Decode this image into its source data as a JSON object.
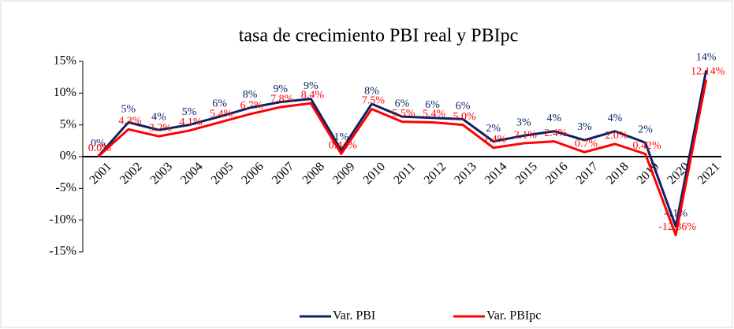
{
  "chart_data": {
    "type": "line",
    "title": "tasa de crecimiento PBI real y PBIpc",
    "categories": [
      "2001",
      "2002",
      "2003",
      "2004",
      "2005",
      "2006",
      "2007",
      "2008",
      "2009",
      "2010",
      "2011",
      "2012",
      "2013",
      "2014",
      "2015",
      "2016",
      "2017",
      "2018",
      "2019",
      "2020",
      "2021"
    ],
    "series": [
      {
        "name": "Var. PBI",
        "color": "#0b2265",
        "values": [
          0,
          5.4,
          4.2,
          5.0,
          6.3,
          7.7,
          8.6,
          9.1,
          1.0,
          8.3,
          6.3,
          6.1,
          5.9,
          2.4,
          3.3,
          4.0,
          2.6,
          4.0,
          2.2,
          -11.0,
          13.6
        ],
        "value_labels": [
          "0%",
          "5%",
          "4%",
          "5%",
          "6%",
          "8%",
          "9%",
          "9%",
          "1%",
          "8%",
          "6%",
          "6%",
          "6%",
          "2%",
          "3%",
          "4%",
          "3%",
          "4%",
          "2%",
          "-11%",
          "14%"
        ]
      },
      {
        "name": "Var. PBIpc",
        "color": "#ff0000",
        "values": [
          0.0,
          4.3,
          3.2,
          4.1,
          5.4,
          6.7,
          7.8,
          8.4,
          0.44,
          7.5,
          5.5,
          5.4,
          5.0,
          1.4,
          2.1,
          2.4,
          0.7,
          2.0,
          0.42,
          -12.36,
          12.14
        ],
        "value_labels": [
          "0.0%",
          "4.3%",
          "3.2%",
          "4.1%",
          "5.4%",
          "6.7%",
          "7.8%",
          "8.4%",
          "0.44%",
          "7.5%",
          "5.5%",
          "5.4%",
          "5.0%",
          "1.4%",
          "2.1%",
          "2.4%",
          "0.7%",
          "2.0%",
          "0.42%",
          "-12.36%",
          "12.14%"
        ]
      }
    ],
    "ylim": [
      -15,
      15
    ],
    "yticks": [
      {
        "value": -15,
        "label": "-15%"
      },
      {
        "value": -10,
        "label": "-10%"
      },
      {
        "value": -5,
        "label": "-5%"
      },
      {
        "value": 0,
        "label": "0%"
      },
      {
        "value": 5,
        "label": "5%"
      },
      {
        "value": 10,
        "label": "10%"
      },
      {
        "value": 15,
        "label": "15%"
      }
    ],
    "legend": "bottom"
  }
}
